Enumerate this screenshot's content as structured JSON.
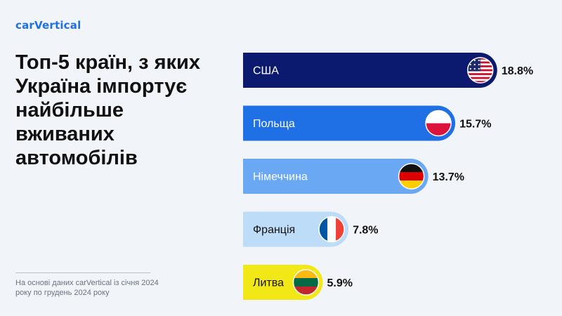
{
  "brand": {
    "logo_text": "carVertical"
  },
  "headline": "Топ-5 країн, з яких Україна імпортує найбільше вживаних автомобілів",
  "footnote": "На основі даних carVertical із січня 2024 року по грудень 2024 року",
  "chart_data": {
    "type": "bar",
    "orientation": "horizontal",
    "categories": [
      "США",
      "Польща",
      "Німеччина",
      "Франція",
      "Литва"
    ],
    "values": [
      18.8,
      15.7,
      13.7,
      7.8,
      5.9
    ],
    "value_labels": [
      "18.8%",
      "15.7%",
      "13.7%",
      "7.8%",
      "5.9%"
    ],
    "flags": [
      "us-flag-icon",
      "poland-flag-icon",
      "germany-flag-icon",
      "france-flag-icon",
      "lithuania-flag-icon"
    ],
    "bar_colors": [
      "#0b1a6e",
      "#1f6fe5",
      "#6aa8f4",
      "#bcdcf8",
      "#f3e817"
    ],
    "label_colors": [
      "#ffffff",
      "#ffffff",
      "#ffffff",
      "#111111",
      "#111111"
    ],
    "title": "",
    "xlabel": "",
    "ylabel": "",
    "grid": false,
    "legend": "none"
  }
}
